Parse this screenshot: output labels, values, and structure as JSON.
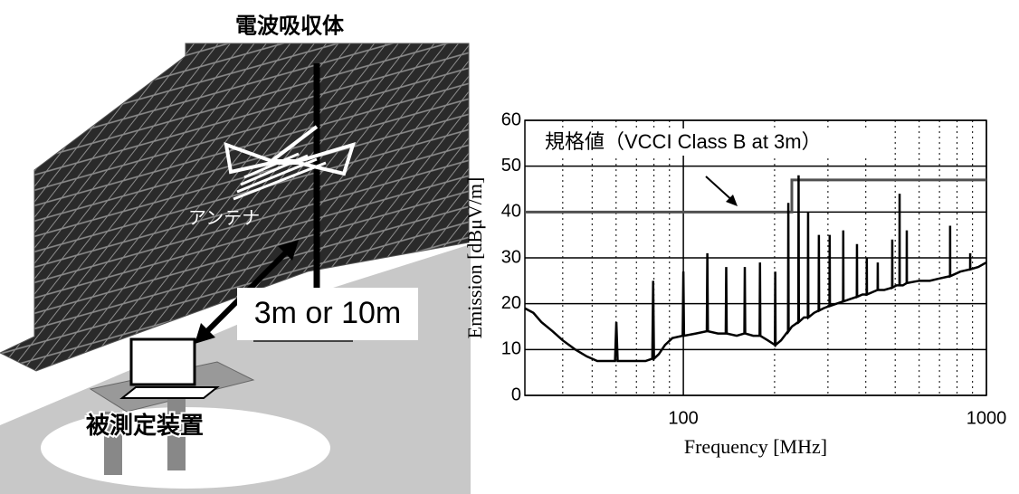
{
  "illustration": {
    "absorber_label": "電波吸収体",
    "antenna_label": "アンテナ",
    "distance_label": "3m or 10m",
    "eut_label": "被測定装置"
  },
  "chart_data": {
    "type": "line",
    "xlabel": "Frequency [MHz]",
    "ylabel": "Emission [dBμV/m]",
    "annotation": "規格値（VCCI Class B at 3m）",
    "xscale": "log",
    "xlim": [
      30,
      1000
    ],
    "xticks": [
      100,
      1000
    ],
    "xminor": [
      40,
      50,
      60,
      70,
      80,
      90,
      200,
      300,
      400,
      500,
      600,
      700,
      800,
      900
    ],
    "ylim": [
      0,
      60
    ],
    "yticks": [
      0,
      10,
      20,
      30,
      40,
      50,
      60
    ],
    "grid": true,
    "series": [
      {
        "color": "#505050",
        "x": [
          30,
          228,
          228,
          1000
        ],
        "values": [
          40,
          40,
          47,
          47
        ]
      },
      {
        "color": "#000000",
        "x": [
          30,
          32,
          34,
          37,
          40,
          44,
          48,
          52,
          56,
          59.5,
          60.1,
          60.7,
          65,
          70,
          75,
          79,
          79.5,
          80,
          83,
          87,
          92,
          99.5,
          100,
          100.5,
          110,
          119.5,
          120,
          120.5,
          130,
          138,
          138.5,
          139,
          150,
          159,
          159.5,
          160,
          170,
          178.5,
          179,
          179.5,
          190,
          200.5,
          201,
          201.5,
          210,
          221.5,
          222,
          222.5,
          228,
          239.5,
          240,
          240.5,
          250,
          257.5,
          258,
          258.5,
          270,
          279.5,
          280,
          280.5,
          290,
          303.5,
          304,
          304.5,
          320,
          336.5,
          337,
          337.5,
          355,
          373.5,
          374,
          374.5,
          390,
          402.5,
          403,
          403.5,
          420,
          437.5,
          438,
          438.5,
          460,
          488.5,
          489,
          489.5,
          505,
          516.5,
          517,
          517.5,
          530,
          545.5,
          546,
          546.5,
          600,
          650,
          700,
          758.5,
          759,
          759.5,
          820,
          883.5,
          884,
          884.5,
          940,
          1000
        ],
        "values": [
          19,
          18,
          16,
          14,
          12,
          10,
          8.5,
          7.5,
          7.5,
          7.5,
          16,
          7.5,
          7.5,
          7.5,
          7.5,
          8,
          25,
          8,
          9,
          11,
          12.5,
          13,
          27,
          13,
          13.5,
          14,
          31,
          14,
          13.5,
          13.5,
          28,
          13.5,
          13,
          13.5,
          28,
          13.5,
          13,
          13,
          29,
          13,
          12,
          11,
          27,
          11,
          12,
          14,
          42,
          14,
          15,
          16,
          48,
          16,
          17,
          17,
          40,
          17,
          18,
          18.5,
          35,
          18.5,
          19,
          19.5,
          35,
          19.5,
          20,
          20.5,
          36,
          20.5,
          21,
          21.5,
          33,
          21.5,
          22,
          22,
          30,
          22,
          22.5,
          23,
          29,
          23,
          23,
          23.5,
          34,
          23.5,
          24,
          24,
          44,
          24,
          24,
          24.5,
          36,
          24.5,
          25,
          25,
          25.5,
          26,
          37,
          26,
          27,
          27.5,
          31,
          27.5,
          28,
          29
        ]
      }
    ]
  }
}
